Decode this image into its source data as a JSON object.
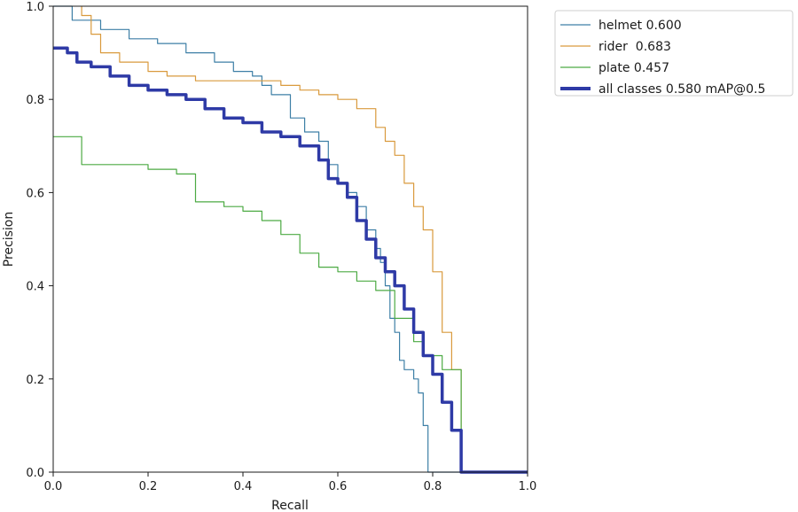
{
  "chart_data": {
    "type": "line",
    "xlabel": "Recall",
    "ylabel": "Precision",
    "xlim": [
      0,
      1
    ],
    "ylim": [
      0,
      1
    ],
    "xticks": [
      "0.0",
      "0.2",
      "0.4",
      "0.6",
      "0.8",
      "1.0"
    ],
    "yticks": [
      "0.0",
      "0.2",
      "0.4",
      "0.6",
      "0.8",
      "1.0"
    ],
    "grid": false,
    "legend_position": "outside-top-right",
    "series": [
      {
        "name": "helmet 0.600",
        "color": "#3d7fa6",
        "x": [
          0.0,
          0.04,
          0.04,
          0.08,
          0.1,
          0.16,
          0.22,
          0.28,
          0.3,
          0.34,
          0.38,
          0.42,
          0.44,
          0.46,
          0.5,
          0.53,
          0.56,
          0.58,
          0.6,
          0.62,
          0.64,
          0.66,
          0.66,
          0.68,
          0.69,
          0.7,
          0.71,
          0.72,
          0.73,
          0.74,
          0.76,
          0.77,
          0.78,
          0.79,
          0.79,
          0.8,
          0.9,
          1.0
        ],
        "y": [
          1.0,
          1.0,
          0.97,
          0.97,
          0.95,
          0.93,
          0.92,
          0.9,
          0.9,
          0.88,
          0.86,
          0.85,
          0.83,
          0.81,
          0.76,
          0.73,
          0.71,
          0.66,
          0.62,
          0.6,
          0.57,
          0.55,
          0.52,
          0.48,
          0.45,
          0.4,
          0.33,
          0.3,
          0.24,
          0.22,
          0.2,
          0.17,
          0.1,
          0.05,
          0.0,
          0.0,
          0.0,
          0.0
        ]
      },
      {
        "name": "rider  0.683",
        "color": "#d99a3d",
        "x": [
          0.06,
          0.06,
          0.08,
          0.1,
          0.14,
          0.2,
          0.24,
          0.3,
          0.4,
          0.48,
          0.52,
          0.56,
          0.6,
          0.64,
          0.68,
          0.7,
          0.72,
          0.74,
          0.76,
          0.78,
          0.8,
          0.82,
          0.84,
          0.86,
          0.86,
          0.88,
          1.0
        ],
        "y": [
          1.0,
          0.98,
          0.94,
          0.9,
          0.88,
          0.86,
          0.85,
          0.84,
          0.84,
          0.83,
          0.82,
          0.81,
          0.8,
          0.78,
          0.74,
          0.71,
          0.68,
          0.62,
          0.57,
          0.52,
          0.43,
          0.3,
          0.22,
          0.2,
          0.0,
          0.0,
          0.0
        ]
      },
      {
        "name": "plate 0.457",
        "color": "#4caa43",
        "x": [
          0.0,
          0.05,
          0.06,
          0.12,
          0.2,
          0.26,
          0.3,
          0.36,
          0.4,
          0.44,
          0.48,
          0.52,
          0.56,
          0.6,
          0.64,
          0.68,
          0.72,
          0.76,
          0.78,
          0.82,
          0.86,
          0.86,
          0.9,
          1.0
        ],
        "y": [
          0.72,
          0.72,
          0.66,
          0.66,
          0.65,
          0.64,
          0.58,
          0.57,
          0.56,
          0.54,
          0.51,
          0.47,
          0.44,
          0.43,
          0.41,
          0.39,
          0.33,
          0.28,
          0.25,
          0.22,
          0.18,
          0.0,
          0.0,
          0.0
        ]
      },
      {
        "name": "all classes 0.580 mAP@0.5",
        "color": "#2e3aa6",
        "bold": true,
        "x": [
          0.0,
          0.03,
          0.05,
          0.08,
          0.12,
          0.16,
          0.2,
          0.24,
          0.28,
          0.32,
          0.36,
          0.4,
          0.44,
          0.48,
          0.52,
          0.56,
          0.58,
          0.6,
          0.62,
          0.64,
          0.66,
          0.68,
          0.7,
          0.72,
          0.74,
          0.76,
          0.78,
          0.8,
          0.82,
          0.84,
          0.86,
          0.86,
          0.9,
          1.0
        ],
        "y": [
          0.91,
          0.9,
          0.88,
          0.87,
          0.85,
          0.83,
          0.82,
          0.81,
          0.8,
          0.78,
          0.76,
          0.75,
          0.73,
          0.72,
          0.7,
          0.67,
          0.63,
          0.62,
          0.59,
          0.54,
          0.5,
          0.46,
          0.43,
          0.4,
          0.35,
          0.3,
          0.25,
          0.21,
          0.15,
          0.09,
          0.05,
          0.0,
          0.0,
          0.0
        ]
      }
    ]
  }
}
